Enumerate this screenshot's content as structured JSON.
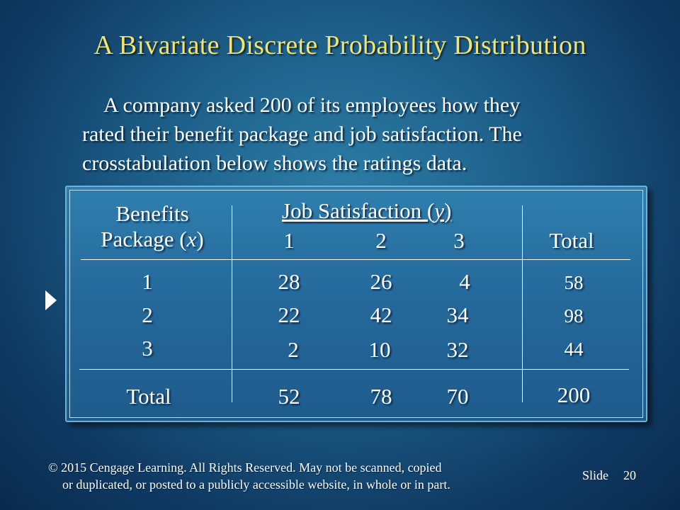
{
  "slide": {
    "title": "A Bivariate Discrete  Probability Distribution",
    "intro_lines": [
      "A company asked 200 of its employees how they",
      "rated their benefit package and job satisfaction.  The",
      "crosstabulation below shows the ratings data."
    ]
  },
  "table": {
    "row_header": [
      "Benefits",
      "Package (",
      "x",
      ")"
    ],
    "col_group_header": [
      "Job Satisfaction (",
      "y",
      ")"
    ],
    "col_headers": [
      "1",
      "2",
      "3"
    ],
    "total_header": "Total",
    "rows": [
      {
        "label": "1",
        "cells": [
          "28",
          "26",
          "4"
        ],
        "total": "58"
      },
      {
        "label": "2",
        "cells": [
          "22",
          "42",
          "34"
        ],
        "total": "98"
      },
      {
        "label": "3",
        "cells": [
          "2",
          "10",
          "32"
        ],
        "total": "44"
      }
    ],
    "total_row": {
      "label": "Total",
      "cells": [
        "52",
        "78",
        "70"
      ],
      "total": "200"
    }
  },
  "footer": {
    "copyright_lines": [
      "© 2015  Cengage Learning.  All Rights Reserved.  May not be scanned, copied",
      "or duplicated, or posted to a publicly accessible website, in whole or in part."
    ],
    "slide_label": "Slide",
    "slide_number": "20"
  }
}
